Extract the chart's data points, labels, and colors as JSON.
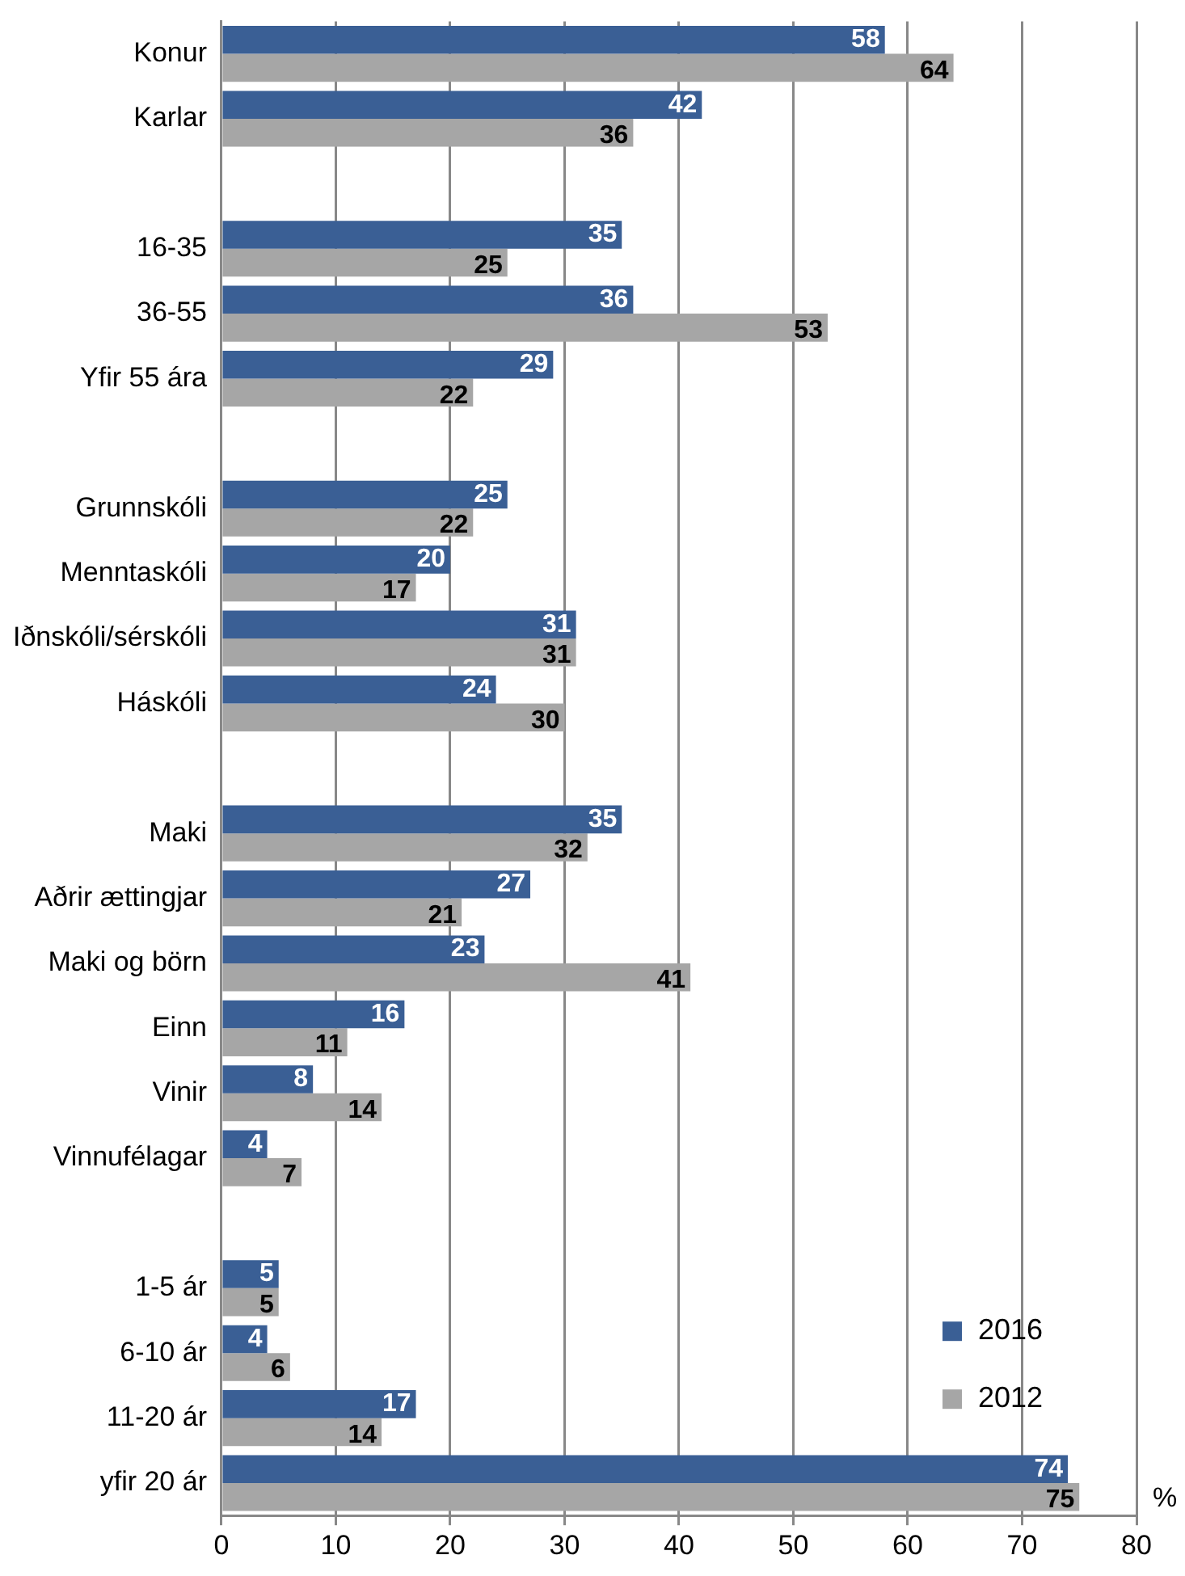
{
  "chart_data": {
    "type": "bar",
    "orientation": "horizontal",
    "categories": [
      "Konur",
      "Karlar",
      null,
      "16-35",
      "36-55",
      "Yfir 55 ára",
      null,
      "Grunnskóli",
      "Menntaskóli",
      "Iðnskóli/sérskóli",
      "Háskóli",
      null,
      "Maki",
      "Aðrir ættingjar",
      "Maki og börn",
      "Einn",
      "Vinir",
      "Vinnufélagar",
      null,
      "1-5 ár",
      "6-10 ár",
      "11-20 ár",
      "yfir 20 ár"
    ],
    "series": [
      {
        "name": "2016",
        "color": "#3a5f95",
        "values": [
          58,
          42,
          null,
          35,
          36,
          29,
          null,
          25,
          20,
          31,
          24,
          null,
          35,
          27,
          23,
          16,
          8,
          4,
          null,
          5,
          4,
          17,
          74
        ]
      },
      {
        "name": "2012",
        "color": "#a6a6a6",
        "values": [
          64,
          36,
          null,
          25,
          53,
          22,
          null,
          22,
          17,
          31,
          30,
          null,
          32,
          21,
          41,
          11,
          14,
          7,
          null,
          5,
          6,
          14,
          75
        ]
      }
    ],
    "xlim": [
      0,
      80
    ],
    "xticks": [
      0,
      10,
      20,
      30,
      40,
      50,
      60,
      70,
      80
    ],
    "grid": "x",
    "legend": "bottom right",
    "data_labels": true,
    "annotations": [
      "%"
    ]
  }
}
